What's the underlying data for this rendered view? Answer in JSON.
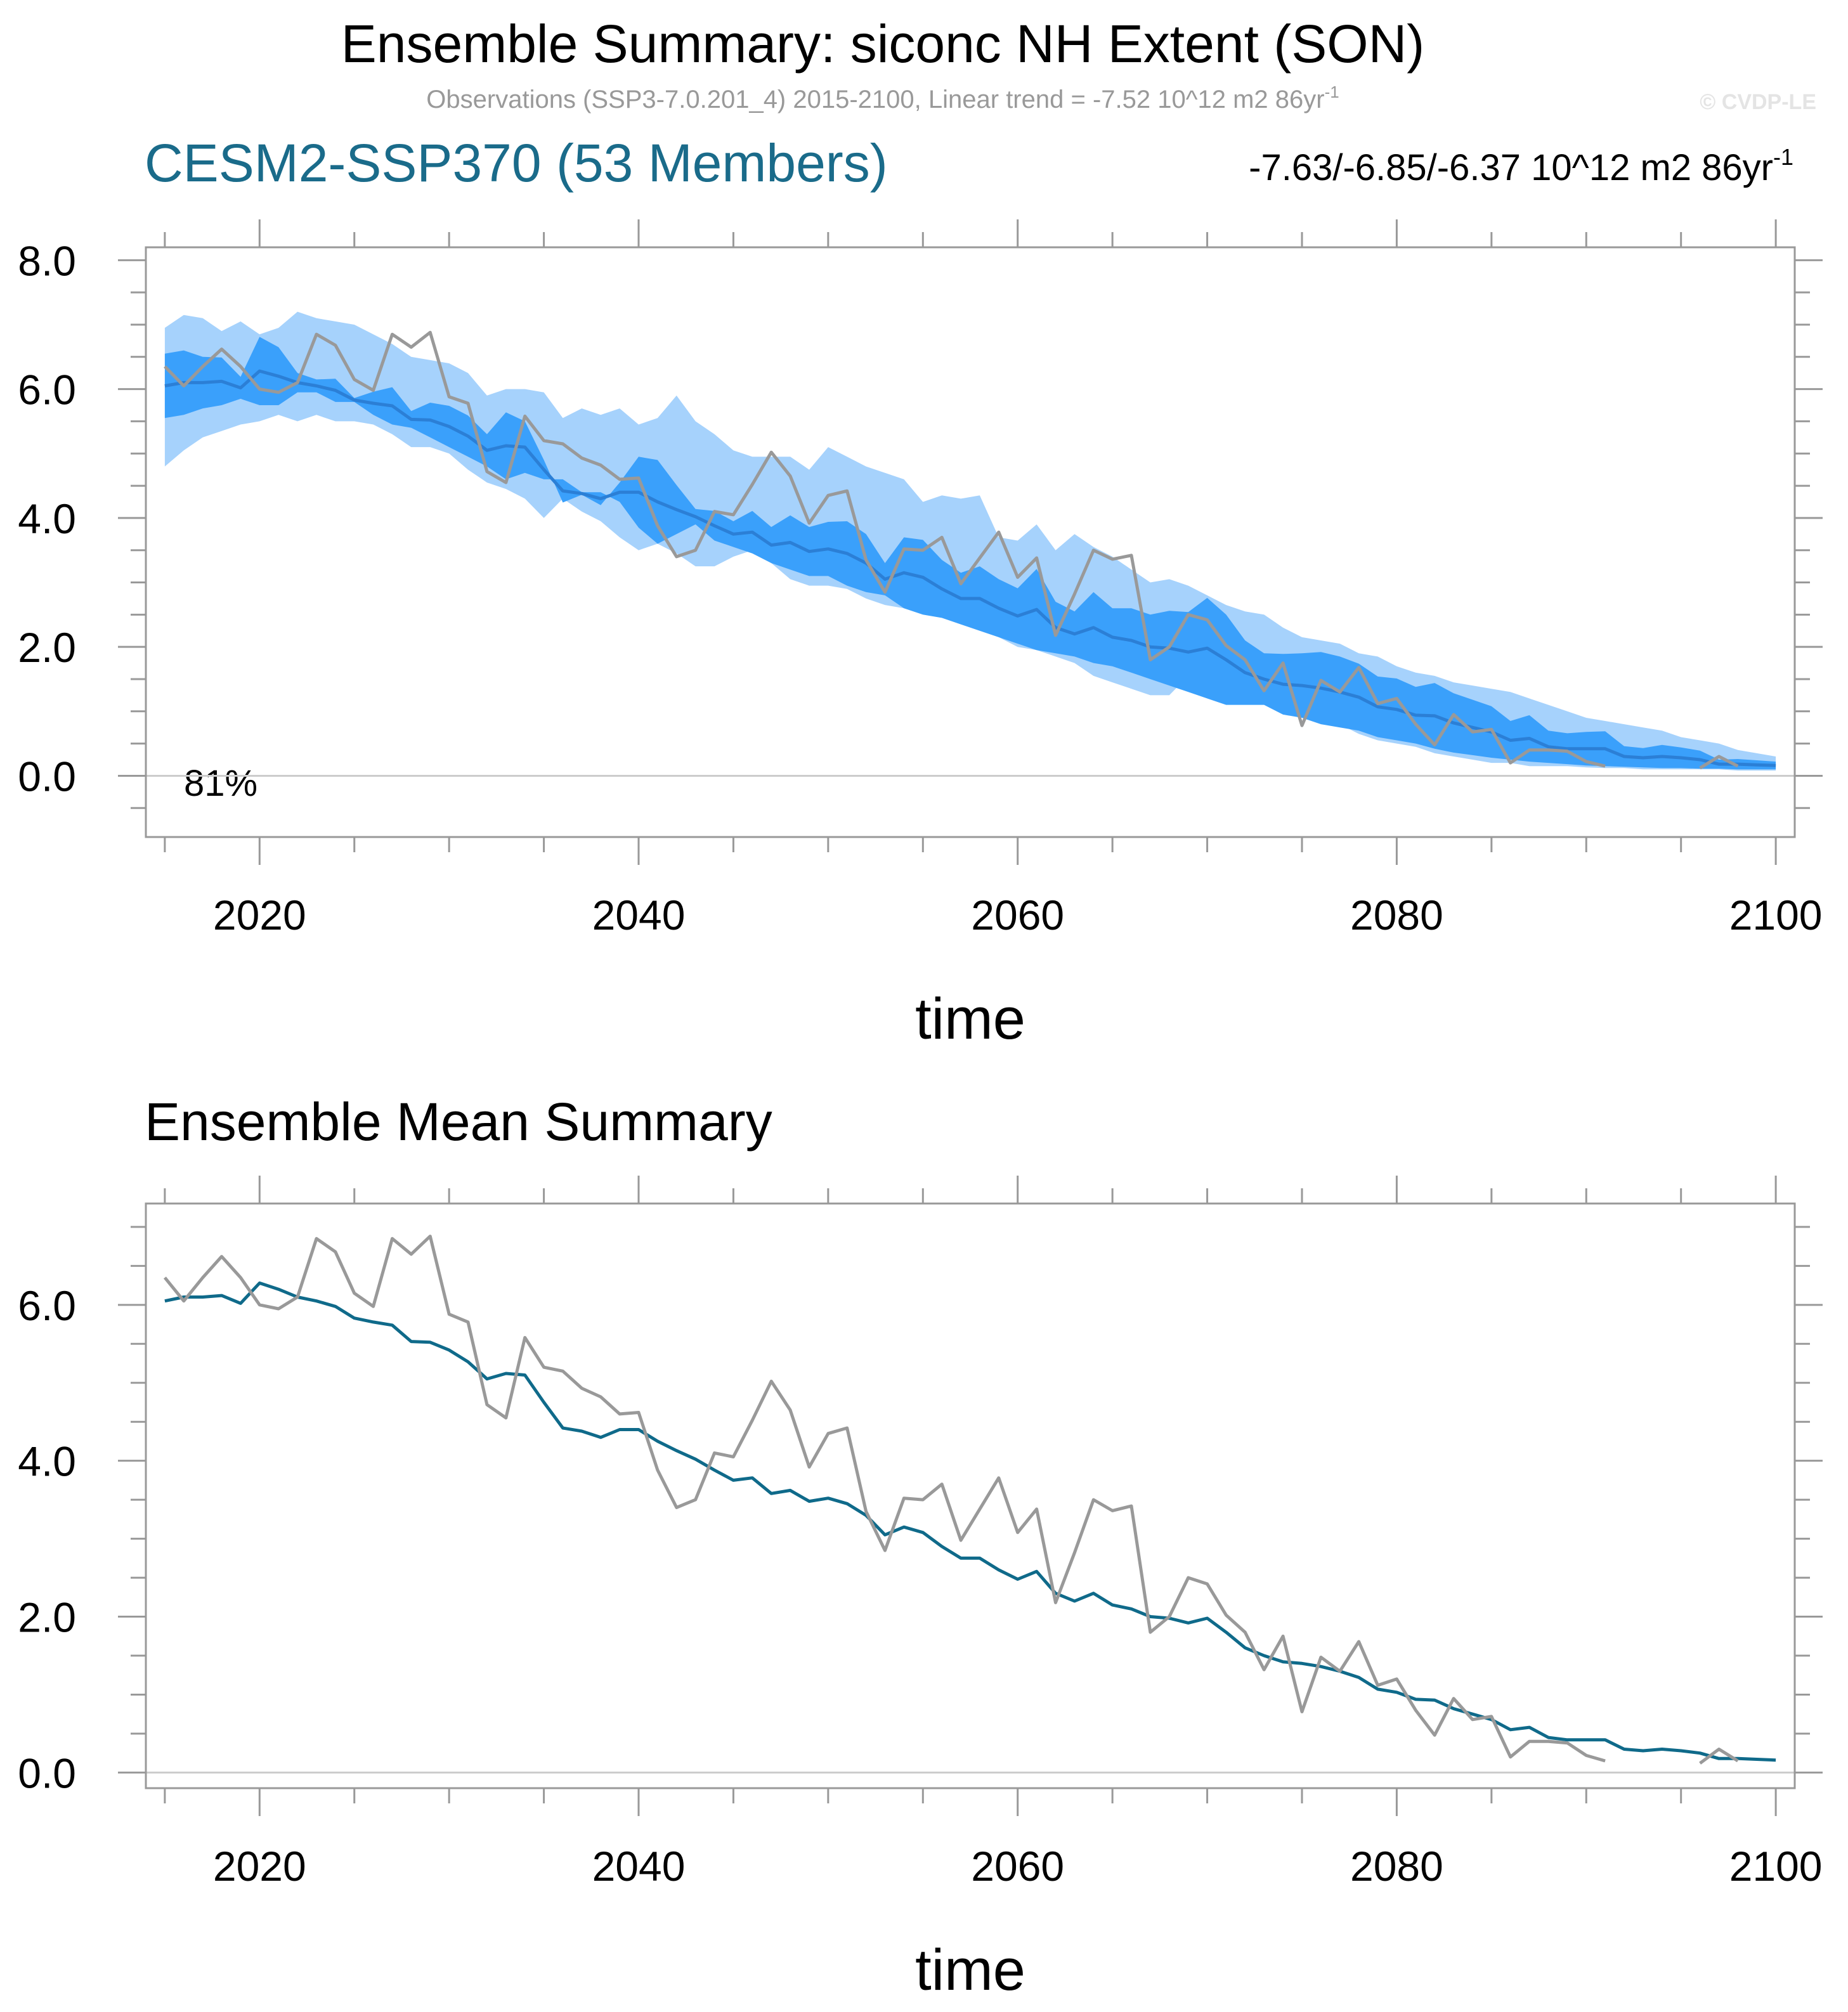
{
  "header": {
    "title": "Ensemble Summary: siconc NH Extent (SON)",
    "obs_prefix": "Observations (SSP3-7.0.201_4) 2015-2100, Linear trend = -7.52 10^12 m2 86yr",
    "obs_sup": "-1",
    "copyright": "© CVDP-LE",
    "ensemble_label": "CESM2-SSP370 (53 Members)",
    "trend_range": "-7.63/-6.85/-6.37 10^12 m2 86yr",
    "trend_sup": "-1"
  },
  "colors": {
    "ensemble_mean": "#0f6a8a",
    "band_outer": "#a6d2fc",
    "band_inner": "#3aa0fb",
    "band_mean_line": "#2b7fd6",
    "observations": "#999999",
    "ensemble_label": "#1a6b8a"
  },
  "chart_data": [
    {
      "type": "area",
      "title": "",
      "xlabel": "time",
      "ylabel": "",
      "xlim": [
        2014,
        2101
      ],
      "ylim": [
        -0.95,
        8.2
      ],
      "x_ticks": [
        2020,
        2040,
        2060,
        2080,
        2100
      ],
      "x_tick_labels": [
        "2020",
        "2040",
        "2060",
        "2080",
        "2100"
      ],
      "y_ticks": [
        0,
        2,
        4,
        6,
        8
      ],
      "y_tick_labels": [
        "0.0",
        "2.0",
        "4.0",
        "6.0",
        "8.0"
      ],
      "annotation": "81%",
      "grid": false,
      "x_start": 2015,
      "bands": [
        {
          "lower": [
            4.8,
            5.05,
            5.25,
            5.35,
            5.45,
            5.5,
            5.6,
            5.5,
            5.6,
            5.5,
            5.5,
            5.45,
            5.3,
            5.1,
            5.1,
            5.0,
            4.75,
            4.55,
            4.45,
            4.3,
            4.0,
            4.3,
            4.1,
            3.95,
            3.7,
            3.5,
            3.6,
            3.45,
            3.25,
            3.25,
            3.4,
            3.5,
            3.3,
            3.05,
            2.95,
            2.95,
            2.9,
            2.75,
            2.65,
            2.6,
            2.5,
            2.45,
            2.35,
            2.25,
            2.15,
            2.0,
            1.95,
            1.85,
            1.75,
            1.55,
            1.45,
            1.35,
            1.25,
            1.25,
            1.55,
            1.35,
            1.35,
            1.35,
            1.25,
            1.25,
            1.1,
            0.9,
            0.8,
            0.65,
            0.55,
            0.5,
            0.45,
            0.35,
            0.3,
            0.25,
            0.2,
            0.2,
            0.15,
            0.15,
            0.15,
            0.13,
            0.12,
            0.12,
            0.1,
            0.1,
            0.1,
            0.1,
            0.1,
            0.08,
            0.08,
            0.08
          ],
          "upper": [
            6.95,
            7.15,
            7.1,
            6.9,
            7.05,
            6.85,
            6.95,
            7.2,
            7.1,
            7.05,
            7.0,
            6.85,
            6.7,
            6.5,
            6.45,
            6.4,
            6.25,
            5.9,
            6.0,
            6.0,
            5.95,
            5.55,
            5.7,
            5.6,
            5.7,
            5.45,
            5.55,
            5.9,
            5.5,
            5.3,
            5.05,
            4.95,
            4.95,
            4.95,
            4.75,
            5.1,
            4.95,
            4.8,
            4.7,
            4.6,
            4.25,
            4.35,
            4.3,
            4.35,
            3.7,
            3.65,
            3.9,
            3.5,
            3.75,
            3.55,
            3.4,
            3.2,
            3.0,
            3.05,
            2.95,
            2.8,
            2.65,
            2.55,
            2.5,
            2.3,
            2.15,
            2.1,
            2.05,
            1.9,
            1.85,
            1.7,
            1.6,
            1.55,
            1.45,
            1.4,
            1.35,
            1.3,
            1.2,
            1.1,
            1.0,
            0.9,
            0.85,
            0.8,
            0.75,
            0.7,
            0.6,
            0.55,
            0.5,
            0.4,
            0.35,
            0.3
          ]
        },
        {
          "lower": [
            5.55,
            5.6,
            5.7,
            5.75,
            5.85,
            5.75,
            5.75,
            5.95,
            5.95,
            5.8,
            5.8,
            5.6,
            5.45,
            5.4,
            5.25,
            5.1,
            4.95,
            4.8,
            4.6,
            4.7,
            4.6,
            4.6,
            4.4,
            4.4,
            4.25,
            3.85,
            3.6,
            3.75,
            3.9,
            3.65,
            3.55,
            3.45,
            3.3,
            3.2,
            3.1,
            3.1,
            2.95,
            2.85,
            2.8,
            2.6,
            2.5,
            2.45,
            2.35,
            2.25,
            2.15,
            2.05,
            1.95,
            1.9,
            1.85,
            1.75,
            1.7,
            1.6,
            1.5,
            1.4,
            1.3,
            1.2,
            1.1,
            1.1,
            1.1,
            0.95,
            0.9,
            0.8,
            0.75,
            0.7,
            0.6,
            0.55,
            0.5,
            0.42,
            0.36,
            0.32,
            0.28,
            0.25,
            0.22,
            0.2,
            0.18,
            0.16,
            0.15,
            0.14,
            0.13,
            0.12,
            0.12,
            0.11,
            0.11,
            0.1,
            0.1,
            0.1
          ]
        }
      ],
      "series": [
        {
          "values": [
            6.05,
            6.1,
            6.1,
            6.12,
            6.02,
            6.28,
            6.2,
            6.1,
            6.05,
            5.98,
            5.83,
            5.78,
            5.74,
            5.53,
            5.52,
            5.42,
            5.27,
            5.05,
            5.12,
            5.1,
            4.75,
            4.42,
            4.38,
            4.3,
            4.4,
            4.4,
            4.25,
            4.13,
            4.02,
            3.88,
            3.75,
            3.78,
            3.58,
            3.62,
            3.48,
            3.52,
            3.45,
            3.3,
            3.05,
            3.15,
            3.08,
            2.9,
            2.75,
            2.75,
            2.6,
            2.48,
            2.58,
            2.3,
            2.2,
            2.3,
            2.15,
            2.1,
            2.0,
            1.98,
            1.92,
            1.98,
            1.8,
            1.6,
            1.5,
            1.42,
            1.4,
            1.36,
            1.3,
            1.22,
            1.07,
            1.03,
            0.94,
            0.93,
            0.82,
            0.75,
            0.68,
            0.55,
            0.58,
            0.45,
            0.42,
            0.42,
            0.42,
            0.3,
            0.28,
            0.3,
            0.28,
            0.25,
            0.18,
            0.18,
            0.17,
            0.16
          ]
        },
        {
          "values": [
            6.35,
            6.05,
            6.35,
            6.62,
            6.35,
            6.0,
            5.95,
            6.1,
            6.85,
            6.68,
            6.15,
            5.98,
            6.85,
            6.65,
            6.88,
            5.88,
            5.78,
            4.72,
            4.55,
            5.58,
            5.2,
            5.15,
            4.93,
            4.82,
            4.6,
            4.62,
            3.88,
            3.4,
            3.5,
            4.1,
            4.05,
            4.52,
            5.02,
            4.65,
            3.92,
            4.35,
            4.42,
            3.35,
            2.85,
            3.52,
            3.5,
            3.7,
            2.98,
            3.38,
            3.78,
            3.08,
            3.38,
            2.18,
            2.82,
            3.5,
            3.36,
            3.42,
            1.8,
            2.0,
            2.5,
            2.42,
            2.02,
            1.8,
            1.32,
            1.75,
            0.78,
            1.48,
            1.3,
            1.68,
            1.12,
            1.2,
            0.8,
            0.48,
            0.95,
            0.68,
            0.72,
            0.2,
            0.4,
            0.4,
            0.38,
            0.22,
            0.15,
            null,
            null,
            null,
            null,
            0.12,
            0.3,
            0.15,
            null,
            null
          ]
        }
      ]
    },
    {
      "type": "line",
      "title": "Ensemble Mean Summary",
      "xlabel": "time",
      "ylabel": "",
      "xlim": [
        2014,
        2101
      ],
      "ylim": [
        -0.2,
        7.3
      ],
      "x_ticks": [
        2020,
        2040,
        2060,
        2080,
        2100
      ],
      "x_tick_labels": [
        "2020",
        "2040",
        "2060",
        "2080",
        "2100"
      ],
      "y_ticks": [
        0,
        2,
        4,
        6
      ],
      "y_tick_labels": [
        "0.0",
        "2.0",
        "4.0",
        "6.0"
      ],
      "grid": false,
      "x_start": 2015,
      "series": [
        {
          "values": [
            6.05,
            6.1,
            6.1,
            6.12,
            6.02,
            6.28,
            6.2,
            6.1,
            6.05,
            5.98,
            5.83,
            5.78,
            5.74,
            5.53,
            5.52,
            5.42,
            5.27,
            5.05,
            5.12,
            5.1,
            4.75,
            4.42,
            4.38,
            4.3,
            4.4,
            4.4,
            4.25,
            4.13,
            4.02,
            3.88,
            3.75,
            3.78,
            3.58,
            3.62,
            3.48,
            3.52,
            3.45,
            3.3,
            3.05,
            3.15,
            3.08,
            2.9,
            2.75,
            2.75,
            2.6,
            2.48,
            2.58,
            2.3,
            2.2,
            2.3,
            2.15,
            2.1,
            2.0,
            1.98,
            1.92,
            1.98,
            1.8,
            1.6,
            1.5,
            1.42,
            1.4,
            1.36,
            1.3,
            1.22,
            1.07,
            1.03,
            0.94,
            0.93,
            0.82,
            0.75,
            0.68,
            0.55,
            0.58,
            0.45,
            0.42,
            0.42,
            0.42,
            0.3,
            0.28,
            0.3,
            0.28,
            0.25,
            0.18,
            0.18,
            0.17,
            0.16
          ]
        },
        {
          "values": [
            6.35,
            6.05,
            6.35,
            6.62,
            6.35,
            6.0,
            5.95,
            6.1,
            6.85,
            6.68,
            6.15,
            5.98,
            6.85,
            6.65,
            6.88,
            5.88,
            5.78,
            4.72,
            4.55,
            5.58,
            5.2,
            5.15,
            4.93,
            4.82,
            4.6,
            4.62,
            3.88,
            3.4,
            3.5,
            4.1,
            4.05,
            4.52,
            5.02,
            4.65,
            3.92,
            4.35,
            4.42,
            3.35,
            2.85,
            3.52,
            3.5,
            3.7,
            2.98,
            3.38,
            3.78,
            3.08,
            3.38,
            2.18,
            2.82,
            3.5,
            3.36,
            3.42,
            1.8,
            2.0,
            2.5,
            2.42,
            2.02,
            1.8,
            1.32,
            1.75,
            0.78,
            1.48,
            1.3,
            1.68,
            1.12,
            1.2,
            0.8,
            0.48,
            0.95,
            0.68,
            0.72,
            0.2,
            0.4,
            0.4,
            0.38,
            0.22,
            0.15,
            null,
            null,
            null,
            null,
            0.12,
            0.3,
            0.15,
            null,
            null
          ]
        }
      ]
    }
  ]
}
